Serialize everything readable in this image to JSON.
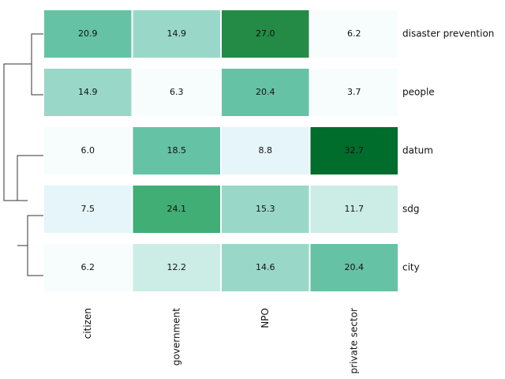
{
  "chart_data": {
    "type": "heatmap",
    "rows": [
      "disaster prevention",
      "people",
      "datum",
      "sdg",
      "city"
    ],
    "columns": [
      "citizen",
      "government",
      "NPO",
      "private sector"
    ],
    "values": [
      [
        20.9,
        14.9,
        27.0,
        6.2
      ],
      [
        14.9,
        6.3,
        20.4,
        3.7
      ],
      [
        6.0,
        18.5,
        8.8,
        32.7
      ],
      [
        7.5,
        24.1,
        15.3,
        11.7
      ],
      [
        6.2,
        12.2,
        14.6,
        20.4
      ]
    ],
    "value_labels": [
      [
        "20.9",
        "14.9",
        "27.0",
        "6.2"
      ],
      [
        "14.9",
        "6.3",
        "20.4",
        "3.7"
      ],
      [
        "6.0",
        "18.5",
        "8.8",
        "32.7"
      ],
      [
        "7.5",
        "24.1",
        "15.3",
        "11.7"
      ],
      [
        "6.2",
        "12.2",
        "14.6",
        "20.4"
      ]
    ],
    "colors": [
      "#f7fcfd",
      "#e5f5f9",
      "#ccece6",
      "#99d8c9",
      "#66c2a4",
      "#41ae76",
      "#238b45",
      "#006d2c"
    ]
  }
}
